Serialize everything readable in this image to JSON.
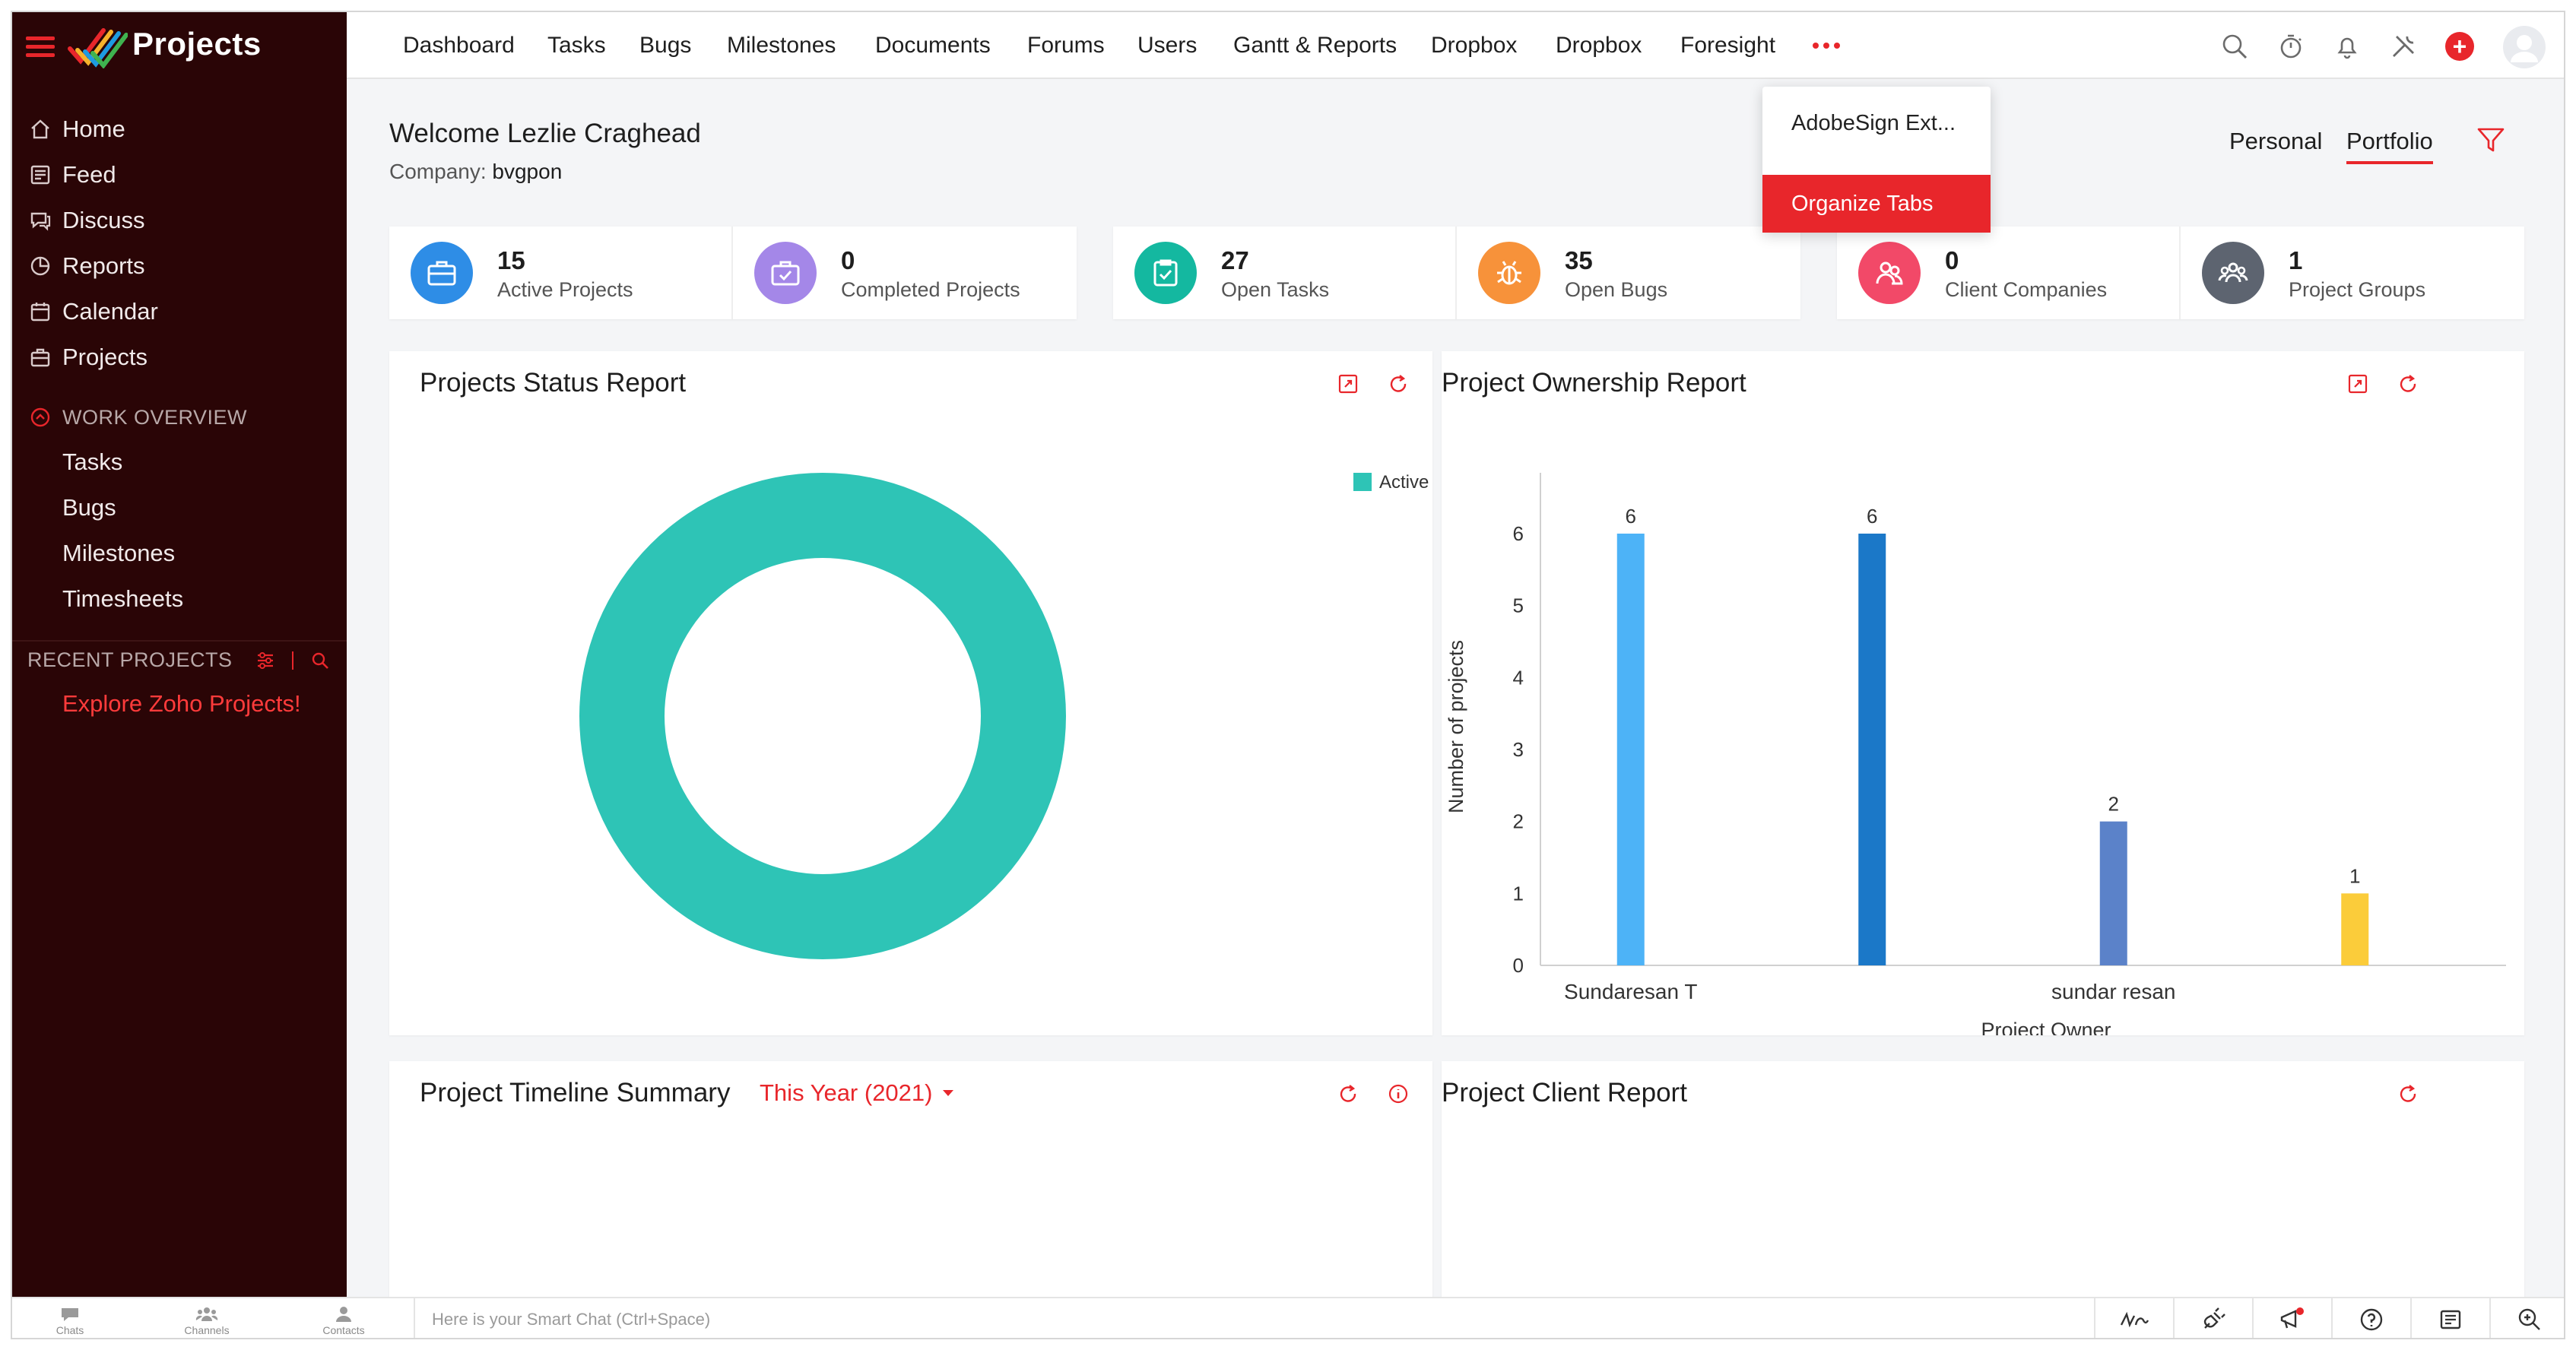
{
  "app": {
    "name": "Projects"
  },
  "sidebar": {
    "items": [
      {
        "label": "Home",
        "icon": "home-icon"
      },
      {
        "label": "Feed",
        "icon": "feed-icon"
      },
      {
        "label": "Discuss",
        "icon": "discuss-icon"
      },
      {
        "label": "Reports",
        "icon": "reports-icon"
      },
      {
        "label": "Calendar",
        "icon": "calendar-icon"
      },
      {
        "label": "Projects",
        "icon": "projects-icon"
      }
    ],
    "work_overview": {
      "title": "WORK OVERVIEW",
      "items": [
        {
          "label": "Tasks"
        },
        {
          "label": "Bugs"
        },
        {
          "label": "Milestones"
        },
        {
          "label": "Timesheets"
        }
      ]
    },
    "recent_projects": {
      "title": "RECENT PROJECTS",
      "link": "Explore Zoho Projects!"
    }
  },
  "topnav": {
    "tabs": [
      {
        "label": "Dashboard"
      },
      {
        "label": "Tasks"
      },
      {
        "label": "Bugs"
      },
      {
        "label": "Milestones"
      },
      {
        "label": "Documents"
      },
      {
        "label": "Forums"
      },
      {
        "label": "Users"
      },
      {
        "label": "Gantt & Reports"
      },
      {
        "label": "Dropbox"
      },
      {
        "label": "Dropbox"
      },
      {
        "label": "Foresight"
      }
    ],
    "more_menu": [
      {
        "label": "AdobeSign Ext..."
      },
      {
        "label": "Organize Tabs"
      }
    ],
    "icons": [
      "search-icon",
      "timer-icon",
      "bell-icon",
      "tools-icon",
      "add-icon",
      "avatar"
    ]
  },
  "welcome": {
    "greeting": "Welcome Lezlie Craghead",
    "company_label": "Company:",
    "company_value": "bvgpon"
  },
  "view_tabs": [
    {
      "label": "Personal"
    },
    {
      "label": "Portfolio"
    }
  ],
  "stats": [
    {
      "value": "15",
      "label": "Active Projects",
      "color": "#2e8de6",
      "icon": "briefcase-icon"
    },
    {
      "value": "0",
      "label": "Completed Projects",
      "color": "#a487e8",
      "icon": "completed-briefcase-icon"
    },
    {
      "value": "27",
      "label": "Open Tasks",
      "color": "#14b8a0",
      "icon": "clipboard-check-icon"
    },
    {
      "value": "35",
      "label": "Open Bugs",
      "color": "#f7923a",
      "icon": "bug-icon"
    },
    {
      "value": "0",
      "label": "Client Companies",
      "color": "#f24968",
      "icon": "client-users-icon"
    },
    {
      "value": "1",
      "label": "Project Groups",
      "color": "#5d6470",
      "icon": "group-icon"
    }
  ],
  "panels": {
    "status_report": {
      "title": "Projects Status Report"
    },
    "ownership_report": {
      "title": "Project Ownership Report"
    },
    "timeline_summary": {
      "title": "Project Timeline Summary",
      "period": "This Year (2021)"
    },
    "client_report": {
      "title": "Project Client Report"
    }
  },
  "chart_data": [
    {
      "type": "pie",
      "title": "Projects Status Report",
      "legend": [
        {
          "name": "Active",
          "color": "#2ec4b6"
        }
      ],
      "slices": [
        {
          "name": "Active",
          "value": 15,
          "color": "#2ec4b6"
        }
      ],
      "legend_position": "top-right"
    },
    {
      "type": "bar",
      "title": "Project Ownership Report",
      "xlabel": "Project Owner",
      "ylabel": "Number of projects",
      "ylim": [
        0,
        6
      ],
      "yticks": [
        0,
        1,
        2,
        3,
        4,
        5,
        6
      ],
      "categories": [
        "Sundaresan T",
        "sundar resan"
      ],
      "bars": [
        {
          "group": "Sundaresan T",
          "value": 6,
          "color": "#4db3f7"
        },
        {
          "group": "Sundaresan T",
          "value": 6,
          "color": "#1b78c8"
        },
        {
          "group": "sundar resan",
          "value": 2,
          "color": "#5b82c9"
        },
        {
          "group": "sundar resan",
          "value": 1,
          "color": "#fbcc3a"
        }
      ],
      "grid": false
    }
  ],
  "bottombar": {
    "tabs": [
      {
        "label": "Chats"
      },
      {
        "label": "Channels"
      },
      {
        "label": "Contacts"
      }
    ],
    "smart_chat_placeholder": "Here is your Smart Chat (Ctrl+Space)"
  }
}
